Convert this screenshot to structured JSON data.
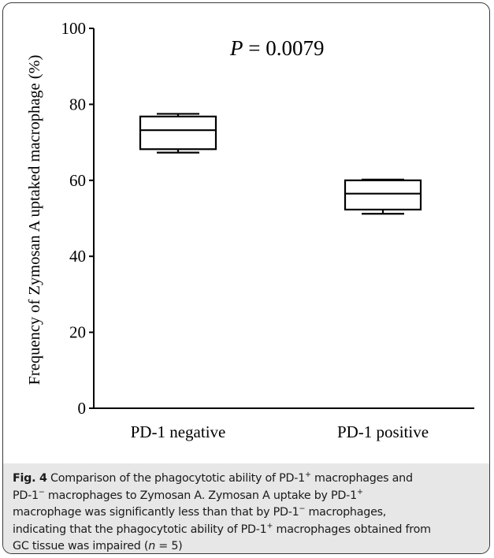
{
  "chart_data": {
    "type": "box",
    "ylabel": "Frequency of  Zymosan A uptaked macrophage (%)",
    "ylim": [
      0,
      100
    ],
    "yticks": [
      0,
      20,
      40,
      60,
      80,
      100
    ],
    "categories": [
      "PD-1 negative",
      "PD-1 positive"
    ],
    "boxes": [
      {
        "category": "PD-1 negative",
        "min": 67.3,
        "q1": 68.2,
        "median": 73.2,
        "q3": 76.8,
        "max": 77.5
      },
      {
        "category": "PD-1 positive",
        "min": 51.2,
        "q1": 52.3,
        "median": 56.5,
        "q3": 60.0,
        "max": 60.2
      }
    ],
    "annotation": {
      "p_label": "P",
      "p_value": "= 0.0079"
    }
  },
  "caption": {
    "label": "Fig. 4",
    "lines": [
      [
        {
          "t": " Comparison of the phagocytotic ability of PD-1"
        },
        {
          "sup": "+"
        },
        {
          "t": " macrophages and"
        }
      ],
      [
        {
          "t": "PD-1"
        },
        {
          "sup": "−"
        },
        {
          "t": " macrophages to Zymosan A. Zymosan A uptake by PD-1"
        },
        {
          "sup": "+"
        }
      ],
      [
        {
          "t": "macrophage was significantly less than that by PD-1"
        },
        {
          "sup": "−"
        },
        {
          "t": " macrophages,"
        }
      ],
      [
        {
          "t": "indicating that the phagocytotic ability of PD-1"
        },
        {
          "sup": "+"
        },
        {
          "t": " macrophages obtained from"
        }
      ],
      [
        {
          "t": "GC tissue was impaired ("
        },
        {
          "i": "n"
        },
        {
          "t": " = 5)"
        }
      ]
    ]
  }
}
